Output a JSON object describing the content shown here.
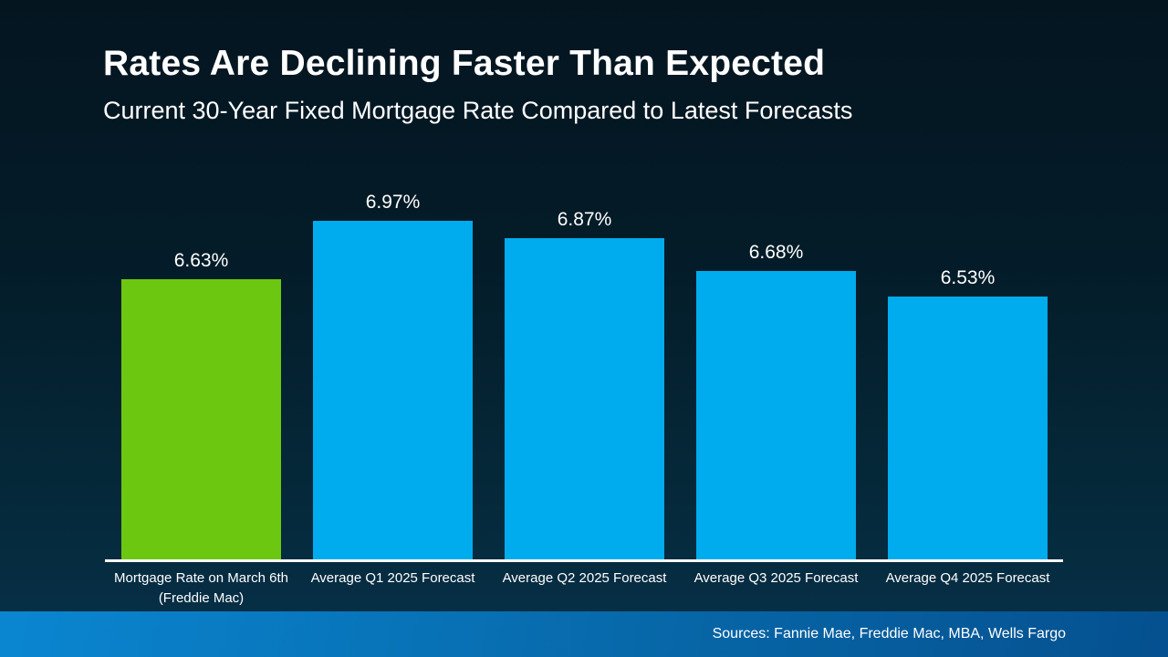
{
  "slide": {
    "title": "Rates Are Declining Faster Than Expected",
    "subtitle": "Current 30-Year Fixed Mortgage Rate Compared to Latest Forecasts",
    "source_note": "Sources: Fannie Mae, Freddie Mac, MBA, Wells Fargo"
  },
  "colors": {
    "background_top": "#041520",
    "background_bottom": "#063049",
    "bar_current_green": "#6CC711",
    "bar_forecast_blue": "#00ACED",
    "axis_line": "#FFFFFF",
    "footer_gradient_left": "#0A86D1",
    "footer_gradient_right": "#05508F",
    "text": "#FFFFFF"
  },
  "chart_data": {
    "type": "bar",
    "title": "Rates Are Declining Faster Than Expected",
    "subtitle": "Current 30-Year Fixed Mortgage Rate Compared to Latest Forecasts",
    "categories": [
      "Mortgage Rate on March 6th\n(Freddie Mac)",
      "Average Q1 2025 Forecast",
      "Average Q2 2025 Forecast",
      "Average Q3 2025 Forecast",
      "Average Q4 2025 Forecast"
    ],
    "values": [
      6.63,
      6.97,
      6.87,
      6.68,
      6.53
    ],
    "value_labels": [
      "6.63%",
      "6.97%",
      "6.87%",
      "6.68%",
      "6.53%"
    ],
    "bar_colors": [
      "#6CC711",
      "#00ACED",
      "#00ACED",
      "#00ACED",
      "#00ACED"
    ],
    "xlabel": "",
    "ylabel": "",
    "ylim": [
      5.0,
      7.25
    ],
    "baseline": 5.0,
    "grid": false,
    "legend": false,
    "annotations": [
      "Sources: Fannie Mae, Freddie Mac, MBA, Wells Fargo"
    ]
  }
}
